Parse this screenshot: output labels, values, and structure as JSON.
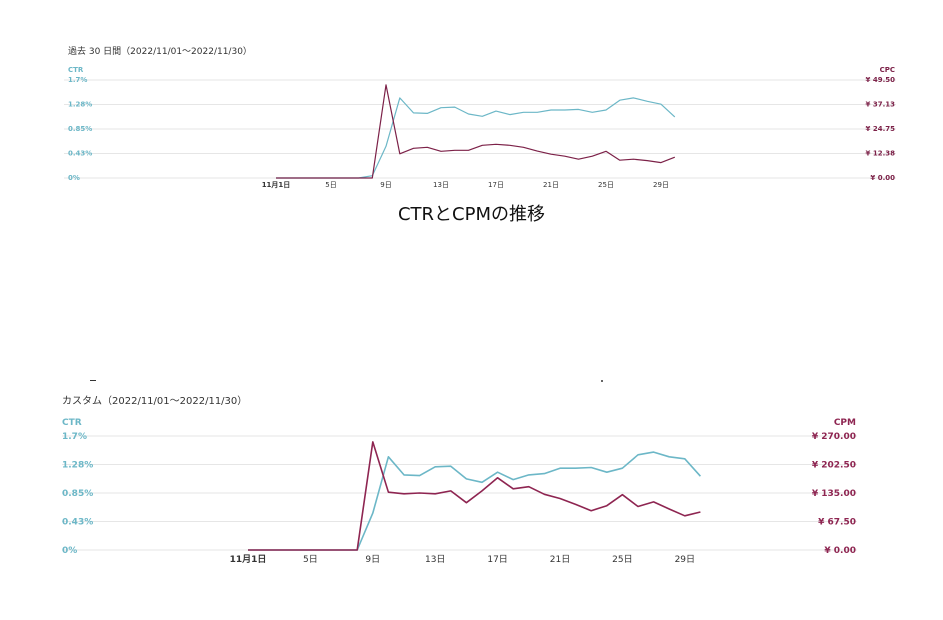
{
  "colors": {
    "ctr": "#6cb7c7",
    "cpc": "#7c2148",
    "cpm": "#8e2551",
    "grid": "#e6e6e6",
    "axis_text": "#333333"
  },
  "chart_data": [
    {
      "type": "line",
      "period_label": "過去 30 日間（2022/11/01～2022/11/30）",
      "x": [
        1,
        2,
        3,
        4,
        5,
        6,
        7,
        8,
        9,
        10,
        11,
        12,
        13,
        14,
        15,
        16,
        17,
        18,
        19,
        20,
        21,
        22,
        23,
        24,
        25,
        26,
        27,
        28,
        29,
        30
      ],
      "x_tick_labels": [
        {
          "x": 1,
          "label": "11月1日",
          "bold": true
        },
        {
          "x": 5,
          "label": "5日"
        },
        {
          "x": 9,
          "label": "9日"
        },
        {
          "x": 13,
          "label": "13日"
        },
        {
          "x": 17,
          "label": "17日"
        },
        {
          "x": 21,
          "label": "21日"
        },
        {
          "x": 25,
          "label": "25日"
        },
        {
          "x": 29,
          "label": "29日"
        }
      ],
      "left_axis": {
        "title": "CTR",
        "range": [
          0,
          1.7
        ],
        "tick_labels": [
          "1.7%",
          "1.28%",
          "0.85%",
          "0.43%",
          "0%"
        ]
      },
      "right_axis": {
        "title": "CPC",
        "range": [
          0,
          49.5
        ],
        "tick_labels": [
          "¥ 49.50",
          "¥ 37.13",
          "¥ 24.75",
          "¥ 12.38",
          "¥ 0.00"
        ]
      },
      "series": [
        {
          "name": "CTR",
          "axis": "left",
          "values": [
            0,
            0,
            0,
            0,
            0,
            0,
            0,
            0.04,
            0.55,
            1.39,
            1.13,
            1.12,
            1.22,
            1.23,
            1.11,
            1.07,
            1.16,
            1.1,
            1.14,
            1.14,
            1.18,
            1.18,
            1.19,
            1.14,
            1.18,
            1.35,
            1.39,
            1.33,
            1.28,
            1.06
          ]
        },
        {
          "name": "CPC",
          "axis": "right",
          "values": [
            0,
            0,
            0,
            0,
            0,
            0,
            0,
            0,
            47,
            12.2,
            15,
            15.5,
            13.5,
            14,
            14,
            16.5,
            17,
            16.5,
            15.5,
            13.6,
            12,
            11,
            9.5,
            11,
            13.5,
            9,
            9.5,
            8.8,
            7.8,
            10.5
          ]
        }
      ]
    },
    {
      "type": "line",
      "period_label": "カスタム（2022/11/01～2022/11/30）",
      "x": [
        1,
        2,
        3,
        4,
        5,
        6,
        7,
        8,
        9,
        10,
        11,
        12,
        13,
        14,
        15,
        16,
        17,
        18,
        19,
        20,
        21,
        22,
        23,
        24,
        25,
        26,
        27,
        28,
        29,
        30
      ],
      "x_tick_labels": [
        {
          "x": 1,
          "label": "11月1日",
          "bold": true
        },
        {
          "x": 5,
          "label": "5日"
        },
        {
          "x": 9,
          "label": "9日"
        },
        {
          "x": 13,
          "label": "13日"
        },
        {
          "x": 17,
          "label": "17日"
        },
        {
          "x": 21,
          "label": "21日"
        },
        {
          "x": 25,
          "label": "25日"
        },
        {
          "x": 29,
          "label": "29日"
        }
      ],
      "left_axis": {
        "title": "CTR",
        "range": [
          0,
          1.7
        ],
        "tick_labels": [
          "1.7%",
          "1.28%",
          "0.85%",
          "0.43%",
          "0%"
        ]
      },
      "right_axis": {
        "title": "CPM",
        "range": [
          0,
          270
        ],
        "tick_labels": [
          "¥ 270.00",
          "¥ 202.50",
          "¥ 135.00",
          "¥ 67.50",
          "¥ 0.00"
        ]
      },
      "series": [
        {
          "name": "CTR",
          "axis": "left",
          "values": [
            0,
            0,
            0,
            0,
            0,
            0,
            0,
            0,
            0.55,
            1.39,
            1.12,
            1.11,
            1.24,
            1.25,
            1.06,
            1.01,
            1.16,
            1.05,
            1.12,
            1.14,
            1.22,
            1.22,
            1.23,
            1.16,
            1.22,
            1.42,
            1.46,
            1.39,
            1.36,
            1.1
          ]
        },
        {
          "name": "CPM",
          "axis": "right",
          "values": [
            0,
            0,
            0,
            0,
            0,
            0,
            0,
            0,
            256,
            137,
            133,
            135,
            133,
            140,
            112,
            140,
            171,
            145,
            150,
            132,
            122,
            108,
            93,
            105,
            131,
            103,
            114,
            97,
            81,
            90
          ]
        }
      ]
    }
  ],
  "caption": "CTRとCPMの推移"
}
